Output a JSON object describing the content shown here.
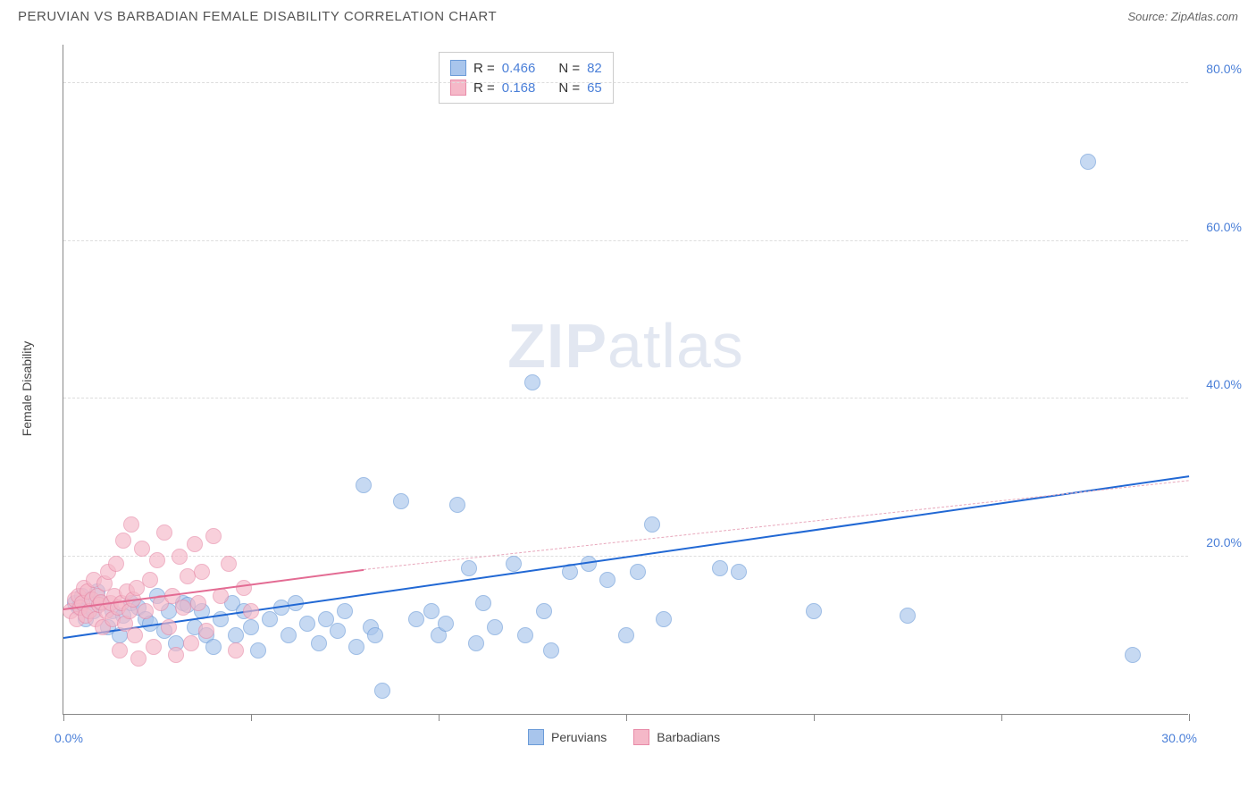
{
  "header": {
    "title": "PERUVIAN VS BARBADIAN FEMALE DISABILITY CORRELATION CHART",
    "source": "Source: ZipAtlas.com"
  },
  "chart": {
    "type": "scatter",
    "ylabel": "Female Disability",
    "watermark_bold": "ZIP",
    "watermark_light": "atlas",
    "xlim": [
      0,
      30
    ],
    "ylim": [
      0,
      85
    ],
    "x_tick_label_left": "0.0%",
    "x_tick_label_right": "30.0%",
    "x_tick_positions": [
      0,
      5,
      10,
      15,
      20,
      25,
      30
    ],
    "y_gridlines": [
      20,
      40,
      60,
      80
    ],
    "y_tick_labels": [
      "20.0%",
      "40.0%",
      "60.0%",
      "80.0%"
    ],
    "background_color": "#ffffff",
    "grid_color": "#dddddd",
    "axis_color": "#888888",
    "series": [
      {
        "name": "Peruvians",
        "fill": "#a8c5ec",
        "stroke": "#6b9bd8",
        "opacity": 0.65,
        "marker_radius": 9,
        "trend": {
          "x1": 0,
          "y1": 9.5,
          "x2": 30,
          "y2": 30,
          "color": "#2168d4",
          "width": 2.5,
          "dash": "none"
        },
        "trend_ext": null,
        "points": [
          [
            0.3,
            14
          ],
          [
            0.4,
            13.5
          ],
          [
            0.5,
            15
          ],
          [
            0.6,
            12
          ],
          [
            0.7,
            14.5
          ],
          [
            0.8,
            13
          ],
          [
            0.9,
            15.5
          ],
          [
            1.0,
            14
          ],
          [
            1.2,
            11
          ],
          [
            1.3,
            13
          ],
          [
            1.5,
            10
          ],
          [
            1.6,
            12.5
          ],
          [
            1.8,
            14
          ],
          [
            2.0,
            13.5
          ],
          [
            2.2,
            12
          ],
          [
            2.3,
            11.5
          ],
          [
            2.5,
            15
          ],
          [
            2.7,
            10.5
          ],
          [
            2.8,
            13
          ],
          [
            3.0,
            9
          ],
          [
            3.2,
            14
          ],
          [
            3.3,
            13.8
          ],
          [
            3.5,
            11
          ],
          [
            3.7,
            13
          ],
          [
            3.8,
            10
          ],
          [
            4.0,
            8.5
          ],
          [
            4.2,
            12
          ],
          [
            4.5,
            14
          ],
          [
            4.6,
            10
          ],
          [
            4.8,
            13
          ],
          [
            5.0,
            11
          ],
          [
            5.2,
            8
          ],
          [
            5.5,
            12
          ],
          [
            5.8,
            13.5
          ],
          [
            6.0,
            10
          ],
          [
            6.2,
            14
          ],
          [
            6.5,
            11.5
          ],
          [
            6.8,
            9
          ],
          [
            7.0,
            12
          ],
          [
            7.3,
            10.5
          ],
          [
            7.5,
            13
          ],
          [
            7.8,
            8.5
          ],
          [
            8.0,
            29
          ],
          [
            8.2,
            11
          ],
          [
            8.3,
            10
          ],
          [
            8.5,
            3
          ],
          [
            9.0,
            27
          ],
          [
            9.4,
            12
          ],
          [
            9.8,
            13
          ],
          [
            10.0,
            10
          ],
          [
            10.2,
            11.5
          ],
          [
            10.5,
            26.5
          ],
          [
            10.8,
            18.5
          ],
          [
            11.0,
            9
          ],
          [
            11.2,
            14
          ],
          [
            11.5,
            11
          ],
          [
            12.0,
            19
          ],
          [
            12.3,
            10
          ],
          [
            12.5,
            42
          ],
          [
            12.8,
            13
          ],
          [
            13.0,
            8
          ],
          [
            13.5,
            18
          ],
          [
            14.0,
            19
          ],
          [
            14.5,
            17
          ],
          [
            15.0,
            10
          ],
          [
            15.3,
            18
          ],
          [
            15.7,
            24
          ],
          [
            16.0,
            12
          ],
          [
            17.5,
            18.5
          ],
          [
            18.0,
            18
          ],
          [
            20.0,
            13
          ],
          [
            22.5,
            12.5
          ],
          [
            27.3,
            70
          ],
          [
            28.5,
            7.5
          ]
        ]
      },
      {
        "name": "Barbadians",
        "fill": "#f5b8c8",
        "stroke": "#e88ba8",
        "opacity": 0.65,
        "marker_radius": 9,
        "trend": {
          "x1": 0,
          "y1": 13.2,
          "x2": 8,
          "y2": 18.2,
          "color": "#e36b93",
          "width": 2.5,
          "dash": "none"
        },
        "trend_ext": {
          "x1": 8,
          "y1": 18.2,
          "x2": 30,
          "y2": 29.5,
          "color": "#e8a8bc",
          "width": 1,
          "dash": "4,4"
        },
        "points": [
          [
            0.2,
            13
          ],
          [
            0.3,
            14.5
          ],
          [
            0.35,
            12
          ],
          [
            0.4,
            15
          ],
          [
            0.45,
            13.5
          ],
          [
            0.5,
            14
          ],
          [
            0.55,
            16
          ],
          [
            0.6,
            12.5
          ],
          [
            0.65,
            15.5
          ],
          [
            0.7,
            13
          ],
          [
            0.75,
            14.5
          ],
          [
            0.8,
            17
          ],
          [
            0.85,
            12
          ],
          [
            0.9,
            15
          ],
          [
            0.95,
            13.8
          ],
          [
            1.0,
            14.2
          ],
          [
            1.05,
            11
          ],
          [
            1.1,
            16.5
          ],
          [
            1.15,
            13
          ],
          [
            1.2,
            18
          ],
          [
            1.25,
            14
          ],
          [
            1.3,
            12
          ],
          [
            1.35,
            15
          ],
          [
            1.4,
            19
          ],
          [
            1.45,
            13.5
          ],
          [
            1.5,
            8
          ],
          [
            1.55,
            14
          ],
          [
            1.6,
            22
          ],
          [
            1.65,
            11.5
          ],
          [
            1.7,
            15.5
          ],
          [
            1.75,
            13
          ],
          [
            1.8,
            24
          ],
          [
            1.85,
            14.5
          ],
          [
            1.9,
            10
          ],
          [
            1.95,
            16
          ],
          [
            2.0,
            7
          ],
          [
            2.1,
            21
          ],
          [
            2.2,
            13
          ],
          [
            2.3,
            17
          ],
          [
            2.4,
            8.5
          ],
          [
            2.5,
            19.5
          ],
          [
            2.6,
            14
          ],
          [
            2.7,
            23
          ],
          [
            2.8,
            11
          ],
          [
            2.9,
            15
          ],
          [
            3.0,
            7.5
          ],
          [
            3.1,
            20
          ],
          [
            3.2,
            13.5
          ],
          [
            3.3,
            17.5
          ],
          [
            3.4,
            9
          ],
          [
            3.5,
            21.5
          ],
          [
            3.6,
            14
          ],
          [
            3.7,
            18
          ],
          [
            3.8,
            10.5
          ],
          [
            4.0,
            22.5
          ],
          [
            4.2,
            15
          ],
          [
            4.4,
            19
          ],
          [
            4.6,
            8
          ],
          [
            4.8,
            16
          ],
          [
            5.0,
            13
          ]
        ]
      }
    ],
    "legend_top": [
      {
        "swatch_fill": "#a8c5ec",
        "swatch_stroke": "#6b9bd8",
        "r_label": "R =",
        "r_val": "0.466",
        "n_label": "N =",
        "n_val": "82"
      },
      {
        "swatch_fill": "#f5b8c8",
        "swatch_stroke": "#e88ba8",
        "r_label": "R =",
        "r_val": " 0.168",
        "n_label": "N =",
        "n_val": "65"
      }
    ],
    "legend_bottom": [
      {
        "swatch_fill": "#a8c5ec",
        "swatch_stroke": "#6b9bd8",
        "label": "Peruvians"
      },
      {
        "swatch_fill": "#f5b8c8",
        "swatch_stroke": "#e88ba8",
        "label": "Barbadians"
      }
    ]
  }
}
